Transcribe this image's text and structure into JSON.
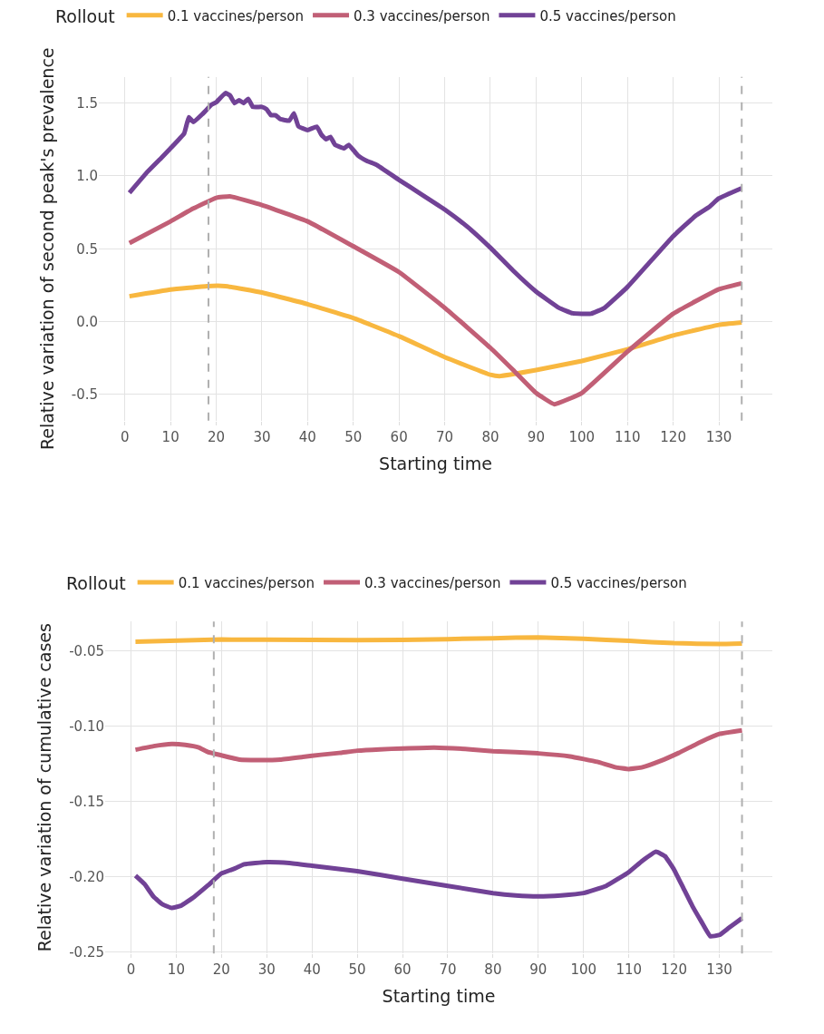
{
  "chart_data": [
    {
      "type": "line",
      "xlabel": "Starting time",
      "ylabel": "Relative variation of second peak's prevalence",
      "legend_title": "Rollout",
      "legend": "top",
      "grid": true,
      "line_style": "solid",
      "marker": "none",
      "xlim": [
        -5.7,
        141.7
      ],
      "xticks": [
        0,
        10,
        20,
        30,
        40,
        50,
        60,
        70,
        80,
        90,
        100,
        110,
        120,
        130
      ],
      "ylim": [
        -0.68,
        1.68
      ],
      "yticks": [
        {
          "value": -0.5,
          "label": "-0.5"
        },
        {
          "value": 0,
          "label": "0.0"
        },
        {
          "value": 0.5,
          "label": "0.5"
        },
        {
          "value": 1,
          "label": "1.0"
        },
        {
          "value": 1.5,
          "label": "1.5"
        }
      ],
      "ref_lines": [
        {
          "axis": "x",
          "value": 18.3,
          "color": "#b0b0b0",
          "line_style": "dashed"
        },
        {
          "axis": "x",
          "value": 135,
          "color": "#b0b0b0",
          "line_style": "dashed"
        }
      ],
      "series": [
        {
          "name": "0.1 vaccines/person",
          "color": "#f8b73f",
          "x": [
            1,
            10,
            18,
            22,
            30,
            40,
            50,
            60,
            70,
            80,
            82,
            90,
            100,
            110,
            120,
            130,
            135
          ],
          "values": [
            0.174,
            0.22,
            0.244,
            0.244,
            0.2,
            0.12,
            0.025,
            -0.1,
            -0.244,
            -0.365,
            -0.374,
            -0.333,
            -0.27,
            -0.19,
            -0.095,
            -0.022,
            -0.006
          ]
        },
        {
          "name": "0.3 vaccines/person",
          "color": "#c15f76",
          "x": [
            1,
            10,
            15,
            20,
            23,
            30,
            40,
            50,
            60,
            70,
            80,
            85,
            90,
            94,
            100,
            110,
            120,
            130,
            135
          ],
          "values": [
            0.539,
            0.688,
            0.777,
            0.85,
            0.86,
            0.8,
            0.688,
            0.517,
            0.34,
            0.095,
            -0.18,
            -0.333,
            -0.49,
            -0.567,
            -0.49,
            -0.206,
            0.054,
            0.222,
            0.263
          ]
        },
        {
          "name": "0.5 vaccines/person",
          "color": "#714296",
          "x": [
            1,
            5,
            8,
            10,
            13,
            14,
            15,
            17,
            19,
            20,
            22,
            23,
            24,
            25,
            26,
            27,
            28,
            30,
            31,
            32,
            33,
            34,
            36,
            37,
            38,
            40,
            42,
            43,
            44,
            45,
            46,
            48,
            49,
            51,
            53,
            55,
            60,
            65,
            70,
            75,
            80,
            85,
            90,
            95,
            98,
            102,
            105,
            110,
            115,
            120,
            125,
            128,
            130,
            135
          ],
          "values": [
            0.884,
            1.03,
            1.125,
            1.19,
            1.293,
            1.404,
            1.37,
            1.426,
            1.49,
            1.506,
            1.569,
            1.553,
            1.5,
            1.52,
            1.5,
            1.53,
            1.474,
            1.474,
            1.458,
            1.417,
            1.417,
            1.39,
            1.38,
            1.43,
            1.34,
            1.315,
            1.338,
            1.284,
            1.252,
            1.268,
            1.214,
            1.19,
            1.214,
            1.141,
            1.103,
            1.078,
            0.973,
            0.872,
            0.77,
            0.65,
            0.507,
            0.349,
            0.206,
            0.095,
            0.057,
            0.054,
            0.095,
            0.238,
            0.412,
            0.586,
            0.729,
            0.79,
            0.846,
            0.916
          ]
        }
      ]
    },
    {
      "type": "line",
      "xlabel": "Starting time",
      "ylabel": "Relative variation of cumulative cases",
      "legend_title": "Rollout",
      "legend": "top",
      "grid": true,
      "line_style": "solid",
      "marker": "none",
      "xlim": [
        -5.7,
        141.7
      ],
      "xticks": [
        0,
        10,
        20,
        30,
        40,
        50,
        60,
        70,
        80,
        90,
        100,
        110,
        120,
        130
      ],
      "ylim": [
        -0.251,
        -0.0305
      ],
      "yticks": [
        {
          "value": -0.25,
          "label": "-0.25"
        },
        {
          "value": -0.2,
          "label": "-0.20"
        },
        {
          "value": -0.15,
          "label": "-0.15"
        },
        {
          "value": -0.1,
          "label": "-0.10"
        },
        {
          "value": -0.05,
          "label": "-0.05"
        }
      ],
      "ref_lines": [
        {
          "axis": "x",
          "value": 18.3,
          "color": "#b0b0b0",
          "line_style": "dashed"
        },
        {
          "axis": "x",
          "value": 135,
          "color": "#b0b0b0",
          "line_style": "dashed"
        }
      ],
      "series": [
        {
          "name": "0.1 vaccines/person",
          "color": "#f8b73f",
          "x": [
            1,
            20,
            40,
            60,
            80,
            90,
            100,
            110,
            120,
            130,
            135
          ],
          "values": [
            -0.044,
            -0.0425,
            -0.0428,
            -0.0428,
            -0.0416,
            -0.041,
            -0.042,
            -0.0434,
            -0.0449,
            -0.0455,
            -0.0452
          ]
        },
        {
          "name": "0.3 vaccines/person",
          "color": "#c15f76",
          "x": [
            1,
            5,
            9,
            12,
            15,
            17,
            20,
            24,
            28,
            33,
            38,
            42,
            46,
            50,
            55,
            60,
            67,
            75,
            80,
            90,
            97,
            103,
            107,
            110,
            113,
            117,
            121,
            126,
            130,
            135
          ],
          "values": [
            -0.1157,
            -0.1133,
            -0.1119,
            -0.1125,
            -0.1142,
            -0.1172,
            -0.1194,
            -0.1222,
            -0.1225,
            -0.1222,
            -0.1204,
            -0.119,
            -0.1178,
            -0.1163,
            -0.1154,
            -0.1148,
            -0.1142,
            -0.1154,
            -0.1166,
            -0.1181,
            -0.1201,
            -0.1237,
            -0.1273,
            -0.1285,
            -0.1273,
            -0.1231,
            -0.1178,
            -0.1103,
            -0.1052,
            -0.1028
          ]
        },
        {
          "name": "0.5 vaccines/person",
          "color": "#714296",
          "x": [
            1,
            3,
            5,
            7,
            9,
            11,
            14,
            17,
            20,
            23,
            25,
            30,
            35,
            40,
            50,
            60,
            70,
            80,
            85,
            90,
            95,
            100,
            105,
            110,
            113,
            116,
            118,
            120,
            122,
            124,
            126,
            128,
            130,
            132,
            135
          ],
          "values": [
            -0.1993,
            -0.2049,
            -0.2133,
            -0.2184,
            -0.2207,
            -0.2193,
            -0.2133,
            -0.2058,
            -0.1978,
            -0.1945,
            -0.1918,
            -0.1903,
            -0.1909,
            -0.1927,
            -0.1963,
            -0.2013,
            -0.2061,
            -0.2109,
            -0.2124,
            -0.213,
            -0.2124,
            -0.2109,
            -0.2061,
            -0.1969,
            -0.1894,
            -0.1834,
            -0.1864,
            -0.1954,
            -0.2073,
            -0.2193,
            -0.2297,
            -0.2396,
            -0.2387,
            -0.2342,
            -0.2276
          ]
        }
      ]
    }
  ]
}
